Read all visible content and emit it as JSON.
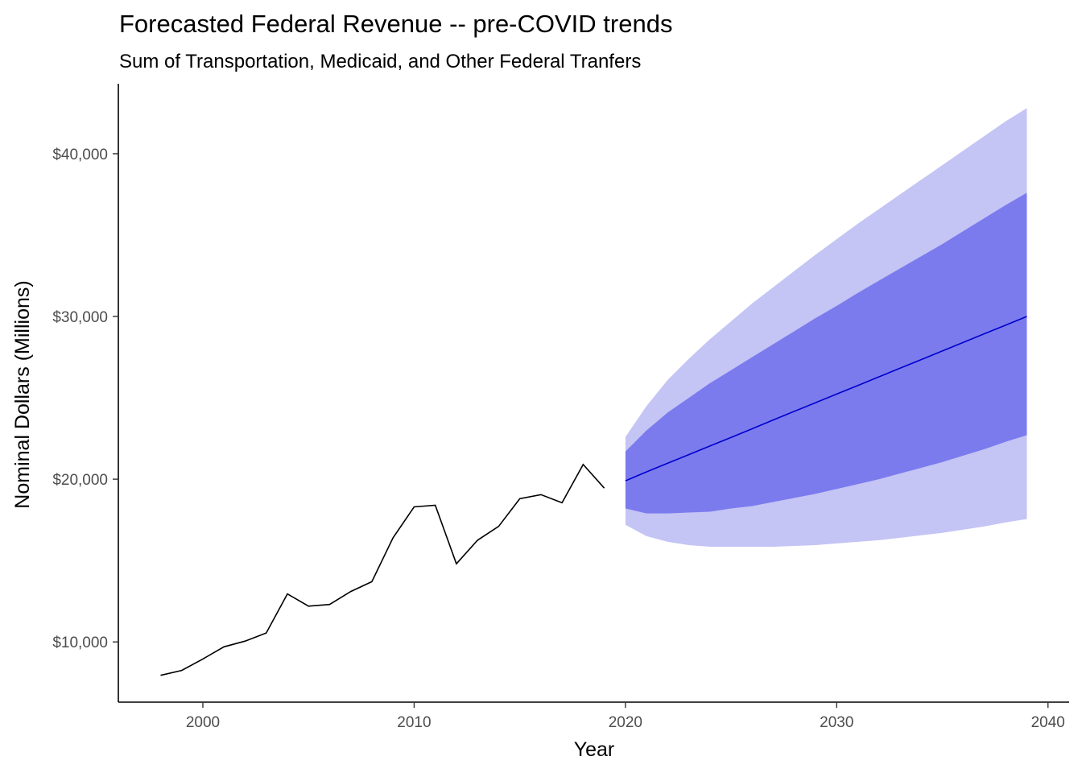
{
  "chart_data": {
    "type": "line",
    "title": "Forecasted Federal Revenue -- pre-COVID trends",
    "subtitle": "Sum of Transportation, Medicaid, and Other Federal Tranfers",
    "xlabel": "Year",
    "ylabel": "Nominal Dollars (Millions)",
    "xlim": [
      1996,
      2041
    ],
    "ylim": [
      6300,
      44300
    ],
    "x_ticks": [
      2000,
      2010,
      2020,
      2030,
      2040
    ],
    "y_ticks": [
      10000,
      20000,
      30000,
      40000
    ],
    "y_tick_labels": [
      "$10,000",
      "$20,000",
      "$30,000",
      "$40,000"
    ],
    "grid": false,
    "legend": "none",
    "colors": {
      "historical": "#000000",
      "forecast": "#0000cc",
      "band_80": "#7b7bee",
      "band_95": "#c4c4f5"
    },
    "historical": {
      "x": [
        1998,
        1999,
        2000,
        2001,
        2002,
        2003,
        2004,
        2005,
        2006,
        2007,
        2008,
        2009,
        2010,
        2011,
        2012,
        2013,
        2014,
        2015,
        2016,
        2017,
        2018,
        2019
      ],
      "y": [
        7950,
        8250,
        8950,
        9700,
        10050,
        10550,
        12950,
        12200,
        12300,
        13100,
        13700,
        16400,
        18300,
        18400,
        14800,
        16250,
        17100,
        18800,
        19050,
        18550,
        20900,
        19450
      ]
    },
    "forecast": {
      "x": [
        2020,
        2021,
        2022,
        2023,
        2024,
        2025,
        2026,
        2027,
        2028,
        2029,
        2030,
        2031,
        2032,
        2033,
        2034,
        2035,
        2036,
        2037,
        2038,
        2039
      ],
      "mean": [
        19900,
        20450,
        20980,
        21510,
        22040,
        22570,
        23100,
        23640,
        24170,
        24700,
        25230,
        25760,
        26290,
        26820,
        27350,
        27880,
        28410,
        28940,
        29470,
        30000
      ],
      "lo80": [
        18200,
        17900,
        17900,
        17950,
        18000,
        18200,
        18350,
        18600,
        18850,
        19100,
        19400,
        19700,
        20000,
        20350,
        20700,
        21050,
        21450,
        21850,
        22300,
        22700
      ],
      "hi80": [
        21700,
        23000,
        24100,
        25000,
        25900,
        26700,
        27500,
        28300,
        29100,
        29900,
        30650,
        31450,
        32200,
        32950,
        33700,
        34450,
        35250,
        36050,
        36850,
        37600
      ],
      "lo95": [
        17200,
        16500,
        16150,
        15950,
        15850,
        15850,
        15850,
        15850,
        15900,
        15950,
        16050,
        16150,
        16250,
        16400,
        16550,
        16700,
        16900,
        17100,
        17350,
        17550
      ],
      "hi95": [
        22600,
        24500,
        26100,
        27400,
        28600,
        29700,
        30800,
        31800,
        32800,
        33800,
        34750,
        35700,
        36600,
        37500,
        38400,
        39300,
        40200,
        41100,
        42000,
        42800
      ]
    }
  }
}
